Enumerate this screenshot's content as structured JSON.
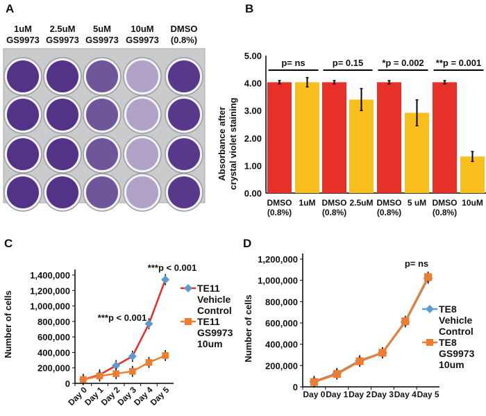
{
  "panel_labels": [
    "A",
    "B",
    "C",
    "D"
  ],
  "plate": {
    "column_labels": [
      [
        "1uM",
        "GS9973"
      ],
      [
        "2.5uM",
        "GS9973"
      ],
      [
        "5uM",
        "GS9973"
      ],
      [
        "10uM",
        "GS9973"
      ],
      [
        "DMSO",
        "(0.8%)"
      ]
    ],
    "rows": 4,
    "stain_color": "#4b2a82"
  },
  "chart_data": [
    {
      "panel": "B",
      "type": "bar",
      "ylabel": [
        "Absorbance after",
        "crystal violet staining"
      ],
      "ylim": [
        0,
        5
      ],
      "yticks": [
        "0.00",
        "1.00",
        "2.00",
        "3.00",
        "4.00",
        "5.00"
      ],
      "categories": [
        [
          "DMSO",
          "(0.8%)"
        ],
        [
          "1uM",
          ""
        ],
        [
          "DMSO",
          "(0.8%)"
        ],
        [
          "2.5uM",
          ""
        ],
        [
          "DMSO",
          "(0.8%)"
        ],
        [
          "5 uM",
          ""
        ],
        [
          "DMSO",
          "(0.8%)"
        ],
        [
          "10uM",
          ""
        ]
      ],
      "values": [
        4.03,
        4.03,
        4.03,
        3.4,
        4.03,
        2.92,
        4.03,
        1.33
      ],
      "errors": [
        0.06,
        0.17,
        0.06,
        0.4,
        0.06,
        0.47,
        0.06,
        0.18
      ],
      "colors": [
        "#e8302a",
        "#f9bf1e",
        "#e8302a",
        "#f9bf1e",
        "#e8302a",
        "#f9bf1e",
        "#e8302a",
        "#f9bf1e"
      ],
      "annotations": [
        "p= ns",
        "p= 0.15",
        "*p = 0.002",
        "**p = 0.001"
      ]
    },
    {
      "panel": "C",
      "type": "line",
      "ylabel": "Number of cells",
      "ylim": [
        0,
        1400000
      ],
      "yticks": [
        "0",
        "200,000",
        "400,000",
        "600,000",
        "800,000",
        "1,000,000",
        "1,200,000",
        "1,400,000"
      ],
      "categories": [
        "Day 0",
        "Day 1",
        "Day 2",
        "Day 3",
        "Day 4",
        "Day 5"
      ],
      "series": [
        {
          "name": [
            "TE11",
            "Vehicle",
            "Control"
          ],
          "values": [
            50000,
            110000,
            230000,
            350000,
            770000,
            1340000
          ],
          "line_color": "#ee2a24",
          "marker_color": "#5b9bd5",
          "marker": "diamond"
        },
        {
          "name": [
            "TE11",
            "GS9973",
            "10um"
          ],
          "values": [
            50000,
            95000,
            125000,
            155000,
            270000,
            360000
          ],
          "line_color": "#ed7d31",
          "marker_color": "#ed7d31",
          "marker": "square"
        }
      ],
      "annotations": [
        {
          "text": "***p < 0.001",
          "day": "Day 4"
        },
        {
          "text": "***p < 0.001",
          "day": "Day 5"
        }
      ]
    },
    {
      "panel": "D",
      "type": "line",
      "ylabel": "Number of cells",
      "ylim": [
        0,
        1200000
      ],
      "yticks": [
        "0",
        "200,000",
        "400,000",
        "600,000",
        "800,000",
        "1,000,000",
        "1,200,000"
      ],
      "categories": [
        "Day 0",
        "Day 1",
        "Day 2",
        "Day 3",
        "Day 4",
        "Day 5"
      ],
      "series": [
        {
          "name": [
            "TE8",
            "Vehicle",
            "Control"
          ],
          "values": [
            50000,
            125000,
            245000,
            320000,
            610000,
            1020000
          ],
          "line_color": "#5b9bd5",
          "marker_color": "#5b9bd5",
          "marker": "diamond"
        },
        {
          "name": [
            "TE8",
            "GS9973",
            "10um"
          ],
          "values": [
            45000,
            120000,
            240000,
            320000,
            615000,
            1030000
          ],
          "line_color": "#ed7d31",
          "marker_color": "#ed7d31",
          "marker": "square"
        }
      ],
      "annotations": [
        {
          "text": "p= ns",
          "day": "Day 5"
        }
      ]
    }
  ]
}
